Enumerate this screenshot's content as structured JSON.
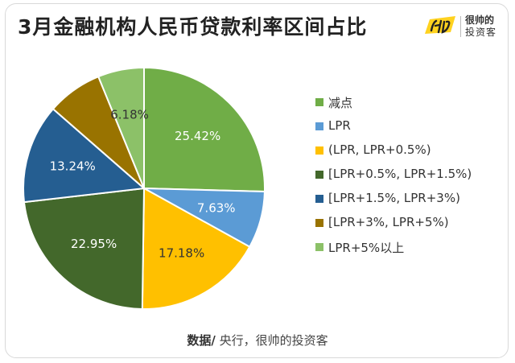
{
  "header": {
    "title": "3月金融机构人民币贷款利率区间占比",
    "logo_line1": "很帅的",
    "logo_line2": "投资客"
  },
  "source": {
    "label": "数据/",
    "text": " 央行，很帅的投资客"
  },
  "chart_data": {
    "type": "pie",
    "title": "3月金融机构人民币贷款利率区间占比",
    "legend_position": "right",
    "slices": [
      {
        "name": "减点",
        "value": 25.42,
        "label": "25.42%",
        "color": "#70ad47"
      },
      {
        "name": "LPR",
        "value": 7.63,
        "label": "7.63%",
        "color": "#5b9bd5"
      },
      {
        "name": "(LPR, LPR+0.5%)",
        "value": 17.18,
        "label": "17.18%",
        "color": "#ffc000"
      },
      {
        "name": "[LPR+0.5%, LPR+1.5%)",
        "value": 22.95,
        "label": "22.95%",
        "color": "#43682b"
      },
      {
        "name": "[LPR+1.5%, LPR+3%)",
        "value": 13.24,
        "label": "13.24%",
        "color": "#255e91"
      },
      {
        "name": "[LPR+3%, LPR+5%)",
        "value": 7.4,
        "label": "",
        "color": "#997300"
      },
      {
        "name": "LPR+5%以上",
        "value": 6.18,
        "label": "6.18%",
        "color": "#8cc168"
      }
    ]
  }
}
